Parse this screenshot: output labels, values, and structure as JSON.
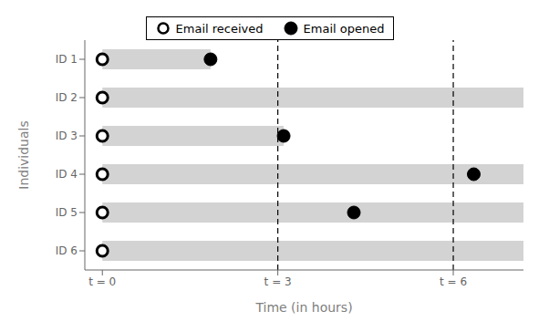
{
  "chart_data": {
    "type": "scatter",
    "orientation": "horizontal",
    "xlabel": "Time (in hours)",
    "ylabel": "Individuals",
    "categories": [
      "ID 1",
      "ID 2",
      "ID 3",
      "ID 4",
      "ID 5",
      "ID 6"
    ],
    "series": [
      {
        "type": "bar",
        "color": "#d3d3d3",
        "values": [
          1.85,
          7.2,
          3.1,
          7.2,
          7.2,
          7.2
        ]
      },
      {
        "name": "Email received",
        "type": "scatter",
        "marker": "open_circle",
        "color": "#000000",
        "values": [
          0,
          0,
          0,
          0,
          0,
          0
        ]
      },
      {
        "name": "Email opened",
        "type": "scatter",
        "marker": "circle",
        "color": "#000000",
        "values": [
          1.85,
          null,
          3.1,
          6.35,
          4.3,
          null
        ]
      }
    ],
    "vlines": [
      3,
      6
    ],
    "xlim": [
      -0.3,
      7.2
    ],
    "xticks": [
      {
        "value": 0,
        "label": "t = 0"
      },
      {
        "value": 3,
        "label": "t = 3"
      },
      {
        "value": 6,
        "label": "t = 6"
      }
    ],
    "legend": "top",
    "grid": false
  }
}
